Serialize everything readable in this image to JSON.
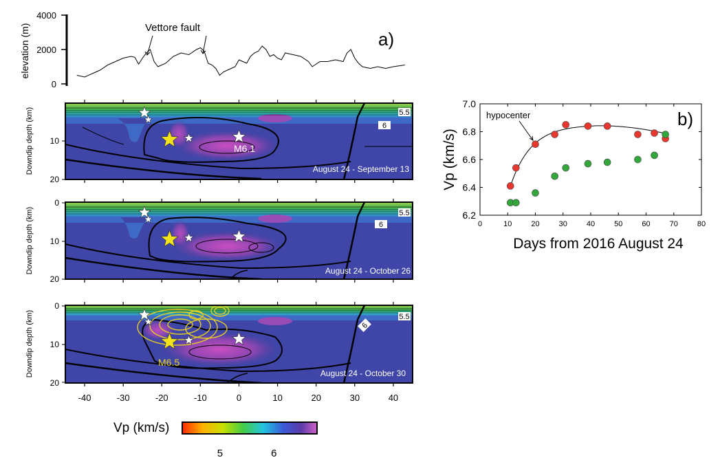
{
  "chart_data": [
    {
      "type": "line",
      "panel_label": "a)",
      "ylabel": "elevation (m)",
      "yticks": [
        "0",
        "2000",
        "4000"
      ],
      "ylim": [
        0,
        4000
      ],
      "xlim": [
        -45,
        45
      ],
      "annotation": "Vettore fault",
      "values": [
        [
          -42,
          500
        ],
        [
          -40,
          400
        ],
        [
          -38,
          600
        ],
        [
          -36,
          800
        ],
        [
          -34,
          1100
        ],
        [
          -32,
          1300
        ],
        [
          -30,
          1500
        ],
        [
          -28,
          1600
        ],
        [
          -27,
          1550
        ],
        [
          -26,
          1150
        ],
        [
          -25,
          1500
        ],
        [
          -24,
          1800
        ],
        [
          -23,
          2000
        ],
        [
          -22,
          1300
        ],
        [
          -21,
          1000
        ],
        [
          -19,
          1200
        ],
        [
          -17,
          1600
        ],
        [
          -15,
          1800
        ],
        [
          -13,
          1700
        ],
        [
          -11,
          2000
        ],
        [
          -10,
          2100
        ],
        [
          -9,
          1900
        ],
        [
          -8,
          1200
        ],
        [
          -7,
          1100
        ],
        [
          -6,
          900
        ],
        [
          -5,
          500
        ],
        [
          -4,
          700
        ],
        [
          -3,
          800
        ],
        [
          -2,
          900
        ],
        [
          -1,
          1000
        ],
        [
          0,
          1400
        ],
        [
          1,
          1300
        ],
        [
          2,
          1200
        ],
        [
          3,
          1600
        ],
        [
          4,
          1800
        ],
        [
          5,
          1900
        ],
        [
          6,
          2200
        ],
        [
          7,
          2000
        ],
        [
          8,
          1600
        ],
        [
          9,
          1700
        ],
        [
          10,
          1500
        ],
        [
          11,
          1400
        ],
        [
          12,
          1800
        ],
        [
          14,
          1700
        ],
        [
          16,
          1600
        ],
        [
          18,
          1300
        ],
        [
          19,
          1000
        ],
        [
          21,
          1300
        ],
        [
          23,
          1300
        ],
        [
          25,
          1400
        ],
        [
          27,
          1300
        ],
        [
          28,
          1800
        ],
        [
          29,
          2000
        ],
        [
          30,
          1500
        ],
        [
          31,
          1200
        ],
        [
          32,
          1000
        ],
        [
          34,
          900
        ],
        [
          36,
          1000
        ],
        [
          38,
          900
        ],
        [
          40,
          1000
        ],
        [
          43,
          1100
        ]
      ]
    },
    {
      "type": "heatmap",
      "panels": [
        {
          "period": "August 24 - September 13",
          "ylabel": "Downdip depth (km)",
          "yticks": [
            "10",
            "20"
          ],
          "stars_large": [
            "M6.1"
          ],
          "contour_labels": [
            "5.5",
            "6"
          ]
        },
        {
          "period": "August 24 - October 26",
          "ylabel": "Downdip depth (km)",
          "yticks": [
            "0",
            "10",
            "20"
          ],
          "contour_labels": [
            "5.5",
            "6"
          ]
        },
        {
          "period": "August 24 - October 30",
          "ylabel": "Downdip depth (km)",
          "yticks": [
            "0",
            "10",
            "20"
          ],
          "stars_large": [
            "M6.5"
          ],
          "contour_labels": [
            "5.5",
            "6"
          ]
        }
      ],
      "xticks": [
        "-40",
        "-30",
        "-20",
        "-10",
        "0",
        "10",
        "20",
        "30",
        "40"
      ],
      "xlim": [
        -45,
        45
      ],
      "ylim": [
        0,
        20
      ],
      "colorbar": {
        "label": "Vp (km/s)",
        "ticks": [
          "5",
          "6"
        ],
        "range": [
          4.3,
          6.8
        ]
      }
    },
    {
      "type": "scatter",
      "panel_label": "b)",
      "xlabel": "Days from 2016 August 24",
      "ylabel": "Vp (km/s)",
      "xlim": [
        0,
        80
      ],
      "ylim": [
        6.2,
        7.0
      ],
      "xticks": [
        "0",
        "10",
        "20",
        "30",
        "40",
        "50",
        "60",
        "70",
        "80"
      ],
      "yticks": [
        "6.2",
        "6.4",
        "6.6",
        "6.8",
        "7.0"
      ],
      "annotation": "hypocenter",
      "series": [
        {
          "color": "#e8372e",
          "points": [
            [
              11,
              6.41
            ],
            [
              13,
              6.54
            ],
            [
              20,
              6.71
            ],
            [
              27,
              6.78
            ],
            [
              31,
              6.85
            ],
            [
              39,
              6.84
            ],
            [
              46,
              6.84
            ],
            [
              57,
              6.78
            ],
            [
              63,
              6.79
            ],
            [
              67,
              6.75
            ]
          ]
        },
        {
          "color": "#33a63c",
          "points": [
            [
              11,
              6.29
            ],
            [
              13,
              6.29
            ],
            [
              20,
              6.36
            ],
            [
              27,
              6.48
            ],
            [
              31,
              6.54
            ],
            [
              39,
              6.57
            ],
            [
              46,
              6.58
            ],
            [
              57,
              6.6
            ],
            [
              63,
              6.63
            ],
            [
              67,
              6.78
            ]
          ]
        }
      ]
    }
  ]
}
